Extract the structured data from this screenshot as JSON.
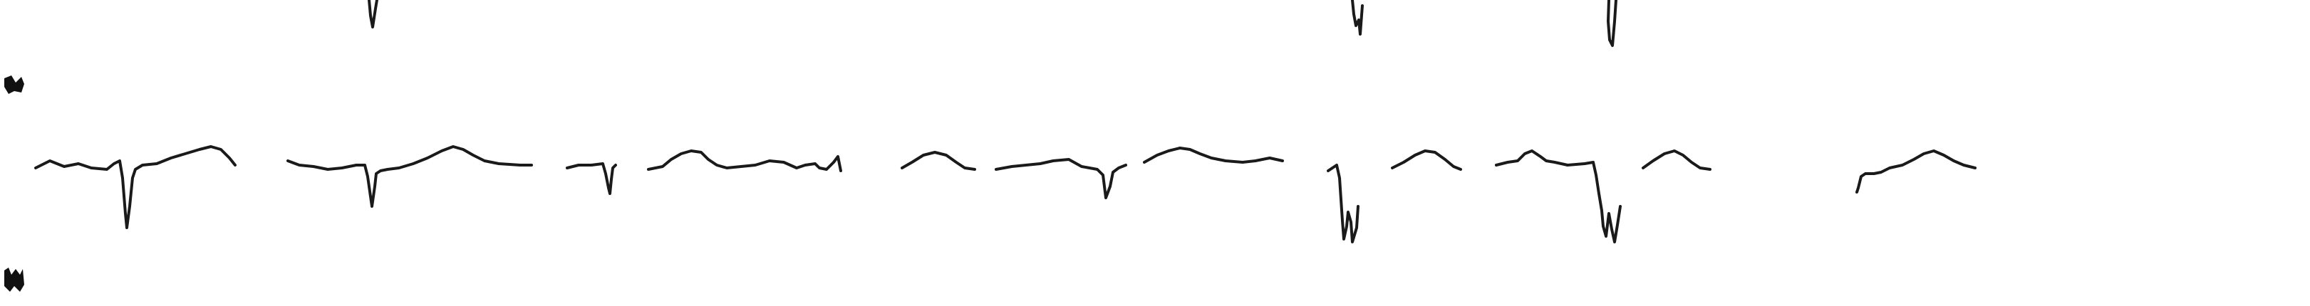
{
  "image": {
    "kind": "ecg-rhythm-strip-fragment",
    "background": "#ffffff",
    "ink": "#1a1a1a"
  },
  "leads": [
    {
      "id": "lead-top",
      "label": ""
    },
    {
      "id": "lead-middle",
      "label": ""
    },
    {
      "id": "lead-bottom",
      "label": ""
    }
  ]
}
